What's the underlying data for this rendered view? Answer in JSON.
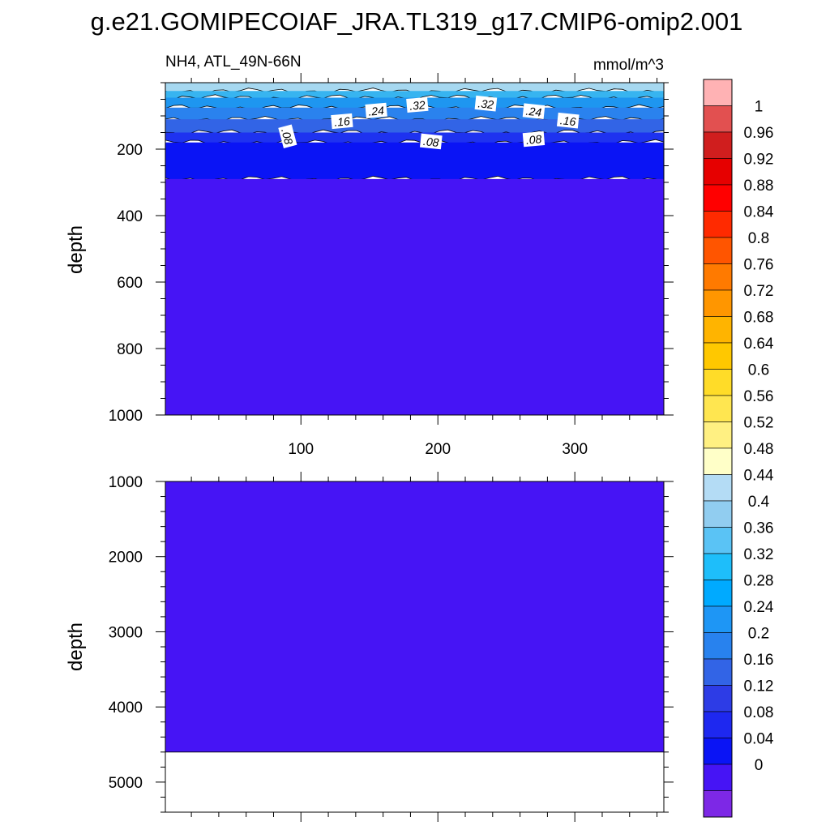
{
  "title": "g.e21.GOMIPECOIAF_JRA.TL319_g17.CMIP6-omip2.001",
  "left_string": "NH4, ATL_49N-66N",
  "right_string": "mmol/m^3",
  "chart_data": [
    {
      "type": "heatmap",
      "panel": "upper",
      "xlabel": "",
      "ylabel": "depth",
      "xlim": [
        1,
        365
      ],
      "ylim": [
        1000,
        0
      ],
      "xticks": [
        100,
        200,
        300
      ],
      "xtick_labels": [
        "100",
        "200",
        "300"
      ],
      "yticks": [
        200,
        400,
        600,
        800,
        1000
      ],
      "ytick_labels": [
        "200",
        "400",
        "600",
        "800",
        "1000"
      ],
      "bands": [
        {
          "depth_top": 0,
          "depth_bottom": 25,
          "color": "#a6d8f0"
        },
        {
          "depth_top": 25,
          "depth_bottom": 45,
          "color": "#37b4f0"
        },
        {
          "depth_top": 45,
          "depth_bottom": 75,
          "color": "#1e96f0"
        },
        {
          "depth_top": 75,
          "depth_bottom": 110,
          "color": "#2a82ee"
        },
        {
          "depth_top": 110,
          "depth_bottom": 150,
          "color": "#3264e6"
        },
        {
          "depth_top": 150,
          "depth_bottom": 180,
          "color": "#1e32f0"
        },
        {
          "depth_top": 180,
          "depth_bottom": 290,
          "color": "#0a14f5"
        },
        {
          "depth_top": 290,
          "depth_bottom": 1000,
          "color": "#4614f5"
        }
      ],
      "contour_labels": [
        {
          "text": ".32",
          "x": 185,
          "depth": 68
        },
        {
          "text": ".32",
          "x": 235,
          "depth": 64
        },
        {
          "text": ".24",
          "x": 155,
          "depth": 85
        },
        {
          "text": ".24",
          "x": 270,
          "depth": 87
        },
        {
          "text": ".16",
          "x": 130,
          "depth": 117
        },
        {
          "text": ".16",
          "x": 295,
          "depth": 115
        },
        {
          "text": ".08",
          "x": 90,
          "depth": 162
        },
        {
          "text": ".08",
          "x": 195,
          "depth": 178
        },
        {
          "text": ".08",
          "x": 270,
          "depth": 171
        }
      ]
    },
    {
      "type": "heatmap",
      "panel": "lower",
      "xlabel": "",
      "ylabel": "depth",
      "xlim": [
        1,
        365
      ],
      "ylim": [
        5400,
        1000
      ],
      "yticks": [
        1000,
        2000,
        3000,
        4000,
        5000
      ],
      "ytick_labels": [
        "1000",
        "2000",
        "3000",
        "4000",
        "5000"
      ],
      "bands": [
        {
          "depth_top": 1000,
          "depth_bottom": 4600,
          "color": "#4614f5"
        }
      ]
    }
  ],
  "colorbar": {
    "labels": [
      "1",
      "0.96",
      "0.92",
      "0.88",
      "0.84",
      "0.8",
      "0.76",
      "0.72",
      "0.68",
      "0.64",
      "0.6",
      "0.56",
      "0.52",
      "0.48",
      "0.44",
      "0.4",
      "0.36",
      "0.32",
      "0.28",
      "0.24",
      "0.2",
      "0.16",
      "0.12",
      "0.08",
      "0.04",
      "0"
    ],
    "colors": [
      "#ffb2b4",
      "#e25050",
      "#d01e1e",
      "#e60000",
      "#ff0000",
      "#ff2a00",
      "#ff5500",
      "#ff7a00",
      "#ff9600",
      "#ffb400",
      "#ffc800",
      "#ffdc28",
      "#ffe650",
      "#fff082",
      "#ffffc8",
      "#b4dcf5",
      "#91cdf0",
      "#5ac3f5",
      "#1ebefa",
      "#00aaff",
      "#1e96f5",
      "#2882ee",
      "#3264e6",
      "#2d3ce6",
      "#1e28f0",
      "#0a14f5",
      "#4614f5",
      "#7d28e6"
    ]
  }
}
